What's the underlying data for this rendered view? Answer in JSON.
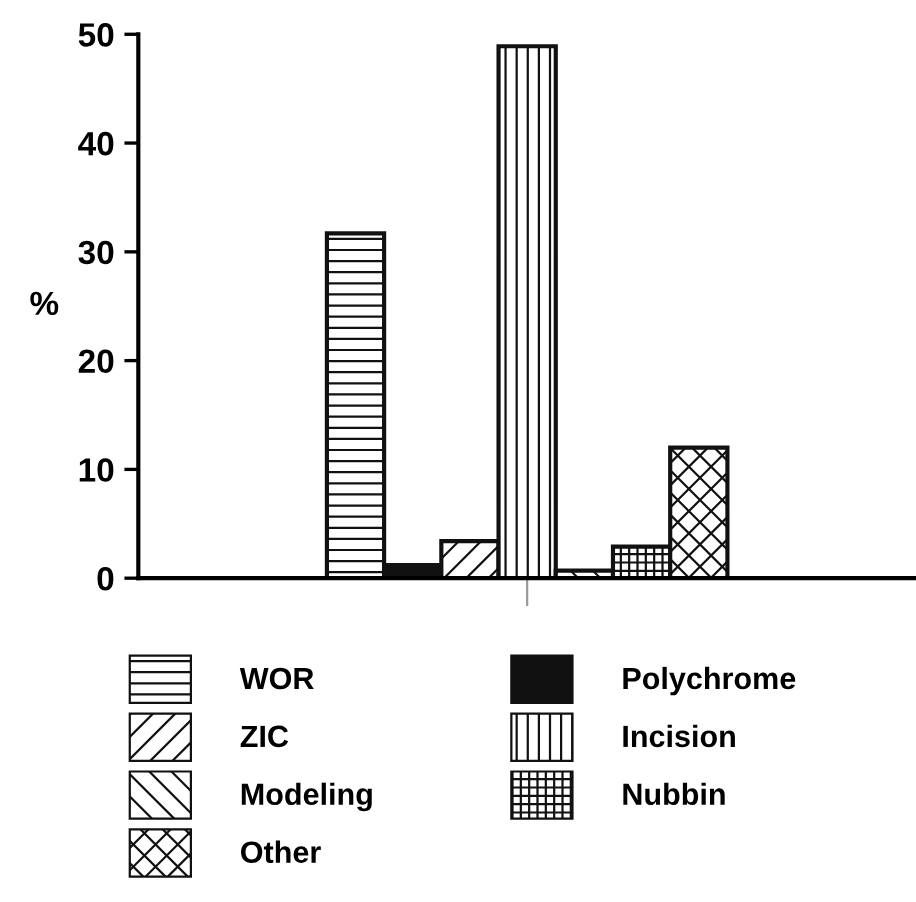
{
  "chart_data": {
    "type": "bar",
    "ylabel": "%",
    "categories": [
      null
    ],
    "series": [
      {
        "name": "WOR",
        "color": "#111111",
        "values": [
          31.7
        ]
      },
      {
        "name": "Polychrome",
        "color": "#111111",
        "values": [
          1.2
        ]
      },
      {
        "name": "ZIC",
        "color": "#111111",
        "values": [
          3.4
        ]
      },
      {
        "name": "Incision",
        "color": "#111111",
        "values": [
          48.9
        ]
      },
      {
        "name": "Modeling",
        "color": "#111111",
        "values": [
          0.7
        ]
      },
      {
        "name": "Nubbin",
        "color": "#111111",
        "values": [
          2.9
        ]
      },
      {
        "name": "Other",
        "color": "#111111",
        "values": [
          12.0
        ]
      }
    ],
    "ylim": [
      0,
      50
    ],
    "yticks": [
      0,
      10,
      20,
      30,
      40,
      50
    ],
    "grid": false,
    "legend": "bottom"
  }
}
